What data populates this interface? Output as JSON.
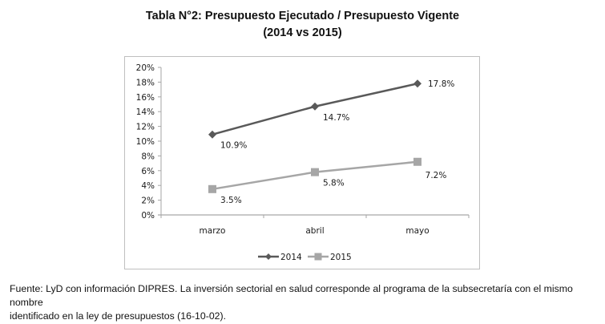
{
  "title_line1": "Tabla N°2: Presupuesto Ejecutado / Presupuesto Vigente",
  "title_line2": "(2014 vs 2015)",
  "footnote_line1": "Fuente: LyD con información DIPRES. La inversión sectorial en salud corresponde al programa de la subsecretaría con el mismo nombre",
  "footnote_line2": "identificado en la ley de presupuestos (16-10-02).",
  "chart_data": {
    "type": "line",
    "title": "Tabla N°2: Presupuesto Ejecutado / Presupuesto Vigente (2014 vs 2015)",
    "xlabel": "",
    "ylabel": "",
    "categories": [
      "marzo",
      "abril",
      "mayo"
    ],
    "ylim": [
      0,
      0.2
    ],
    "yticks": [
      0,
      0.02,
      0.04,
      0.06,
      0.08,
      0.1,
      0.12,
      0.14,
      0.16,
      0.18,
      0.2
    ],
    "ytick_labels": [
      "0%",
      "2%",
      "4%",
      "6%",
      "8%",
      "10%",
      "12%",
      "14%",
      "16%",
      "18%",
      "20%"
    ],
    "grid": false,
    "legend_position": "bottom",
    "series": [
      {
        "name": "2014",
        "values": [
          0.109,
          0.147,
          0.178
        ],
        "labels": [
          "10.9%",
          "14.7%",
          "17.8%"
        ],
        "color": "#595959",
        "marker": "diamond"
      },
      {
        "name": "2015",
        "values": [
          0.035,
          0.058,
          0.072
        ],
        "labels": [
          "3.5%",
          "5.8%",
          "7.2%"
        ],
        "color": "#a6a6a6",
        "marker": "square"
      }
    ]
  }
}
